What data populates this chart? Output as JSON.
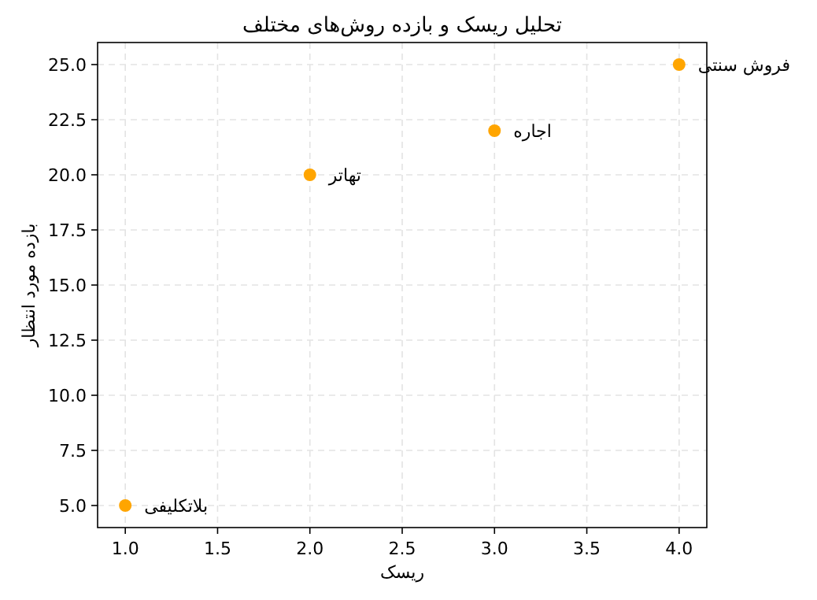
{
  "chart_data": {
    "type": "scatter",
    "title": "تحلیل ریسک و بازده روش‌های مختلف",
    "xlabel": "ریسک",
    "ylabel": "بازده مورد انتظار",
    "x": [
      1,
      2,
      3,
      4
    ],
    "values": [
      5,
      20,
      22,
      25
    ],
    "color": "#ffa500",
    "marker": "circle",
    "grid": true,
    "xlim": [
      0.85,
      4.15
    ],
    "ylim": [
      4,
      26
    ],
    "xticks": [
      {
        "value": 1,
        "label": "1.0"
      },
      {
        "value": 1.5,
        "label": "1.5"
      },
      {
        "value": 2,
        "label": "2.0"
      },
      {
        "value": 2.5,
        "label": "2.5"
      },
      {
        "value": 3,
        "label": "3.0"
      },
      {
        "value": 3.5,
        "label": "3.5"
      },
      {
        "value": 4,
        "label": "4.0"
      }
    ],
    "yticks": [
      {
        "value": 5,
        "label": "5.0"
      },
      {
        "value": 7.5,
        "label": "7.5"
      },
      {
        "value": 10,
        "label": "10.0"
      },
      {
        "value": 12.5,
        "label": "12.5"
      },
      {
        "value": 15,
        "label": "15.0"
      },
      {
        "value": 17.5,
        "label": "17.5"
      },
      {
        "value": 20,
        "label": "20.0"
      },
      {
        "value": 22.5,
        "label": "22.5"
      },
      {
        "value": 25,
        "label": "25.0"
      }
    ],
    "annotations": [
      {
        "text": "بلاتکلیفی",
        "x": 1,
        "y": 5
      },
      {
        "text": "تهاتر",
        "x": 2,
        "y": 20
      },
      {
        "text": "اجاره",
        "x": 3,
        "y": 22
      },
      {
        "text": "فروش سنتی",
        "x": 4,
        "y": 25
      }
    ]
  }
}
